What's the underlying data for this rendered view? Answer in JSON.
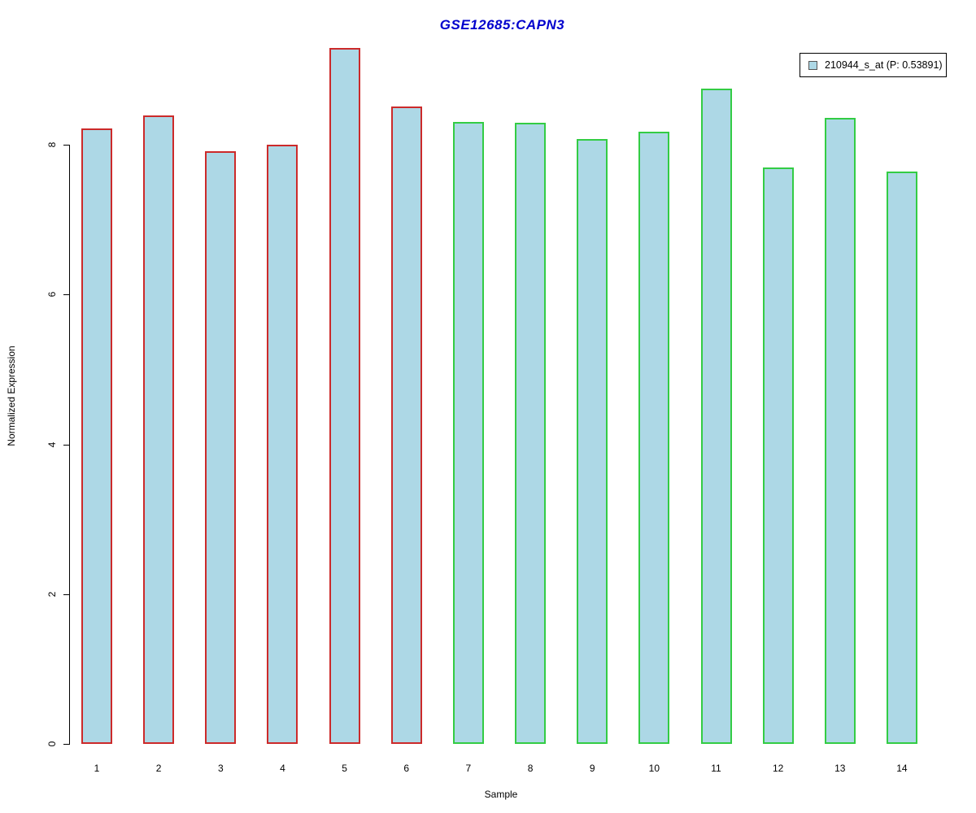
{
  "chart_data": {
    "type": "bar",
    "title": "GSE12685:CAPN3",
    "title_color": "#0000CD",
    "xlabel": "Sample",
    "ylabel": "Normalized Expression",
    "categories": [
      "1",
      "2",
      "3",
      "4",
      "5",
      "6",
      "7",
      "8",
      "9",
      "10",
      "11",
      "12",
      "13",
      "14"
    ],
    "values": [
      8.22,
      8.39,
      7.91,
      8.0,
      9.29,
      8.51,
      8.31,
      8.3,
      8.08,
      8.18,
      8.75,
      7.7,
      8.36,
      7.64
    ],
    "series": [
      {
        "name": "210944_s_at (P: 0.53891)",
        "values": [
          8.22,
          8.39,
          7.91,
          8.0,
          9.29,
          8.51,
          8.31,
          8.3,
          8.08,
          8.18,
          8.75,
          7.7,
          8.36,
          7.64
        ]
      }
    ],
    "bar_fill": "#ADD8E6",
    "bar_border_colors": [
      "#CC2A2A",
      "#CC2A2A",
      "#CC2A2A",
      "#CC2A2A",
      "#CC2A2A",
      "#CC2A2A",
      "#33CC44",
      "#33CC44",
      "#33CC44",
      "#33CC44",
      "#33CC44",
      "#33CC44",
      "#33CC44",
      "#33CC44"
    ],
    "group_note": "samples 1-6 red outline, samples 7-14 green outline",
    "yticks": [
      0,
      2,
      4,
      6,
      8
    ],
    "ylim": [
      0,
      9.37
    ],
    "grid": false,
    "axis_color": "#000000",
    "legend": {
      "label": "210944_s_at (P: 0.53891)",
      "position": "top-right",
      "swatch_fill": "#ADD8E6",
      "swatch_border": "#555555"
    }
  }
}
